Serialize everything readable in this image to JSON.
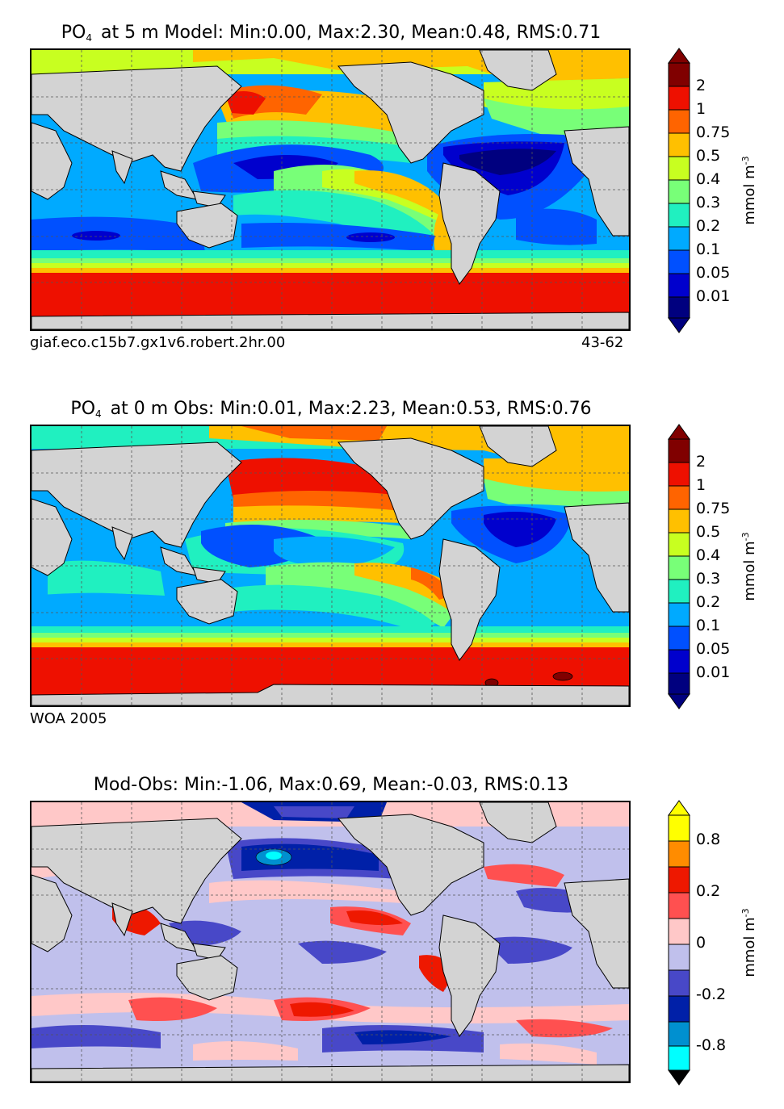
{
  "panels": [
    {
      "title_prefix": "PO",
      "title_sub": "4",
      "title_rest": "at 5 m Model: Min:0.00, Max:2.30, Mean:0.48, RMS:0.71",
      "caption_left": "giaf.eco.c15b7.gx1v6.robert.2hr.00",
      "caption_right": "43-62",
      "colorbar": {
        "ticks": [
          "2",
          "1",
          "0.75",
          "0.5",
          "0.4",
          "0.3",
          "0.2",
          "0.1",
          "0.05",
          "0.01"
        ],
        "colors": [
          "#00007f",
          "#0000cd",
          "#0050ff",
          "#00aaff",
          "#20f0c0",
          "#78ff78",
          "#c8ff20",
          "#ffc000",
          "#ff6400",
          "#ee1000",
          "#800000"
        ],
        "unit": "mmol m",
        "unit_exp": "-3"
      }
    },
    {
      "title_prefix": "PO",
      "title_sub": "4",
      "title_rest": "at 0 m Obs: Min:0.01, Max:2.23, Mean:0.53, RMS:0.76",
      "caption_left": "WOA 2005",
      "caption_right": "",
      "colorbar": {
        "ticks": [
          "2",
          "1",
          "0.75",
          "0.5",
          "0.4",
          "0.3",
          "0.2",
          "0.1",
          "0.05",
          "0.01"
        ],
        "colors": [
          "#00007f",
          "#0000cd",
          "#0050ff",
          "#00aaff",
          "#20f0c0",
          "#78ff78",
          "#c8ff20",
          "#ffc000",
          "#ff6400",
          "#ee1000",
          "#800000"
        ],
        "unit": "mmol m",
        "unit_exp": "-3"
      }
    },
    {
      "title_prefix": "",
      "title_sub": "",
      "title_rest": "Mod-Obs: Min:-1.06, Max:0.69, Mean:-0.03, RMS:0.13",
      "caption_left": "",
      "caption_right": "",
      "colorbar": {
        "ticks": [
          "0.8",
          "0.2",
          "0",
          "-0.2",
          "-0.8"
        ],
        "colors": [
          "#00ffff",
          "#0090d0",
          "#0020a8",
          "#4848c8",
          "#c0c0ec",
          "#ffc8c8",
          "#ff5050",
          "#ee1800",
          "#ff8c00",
          "#ffff00"
        ],
        "unit": "mmol m",
        "unit_exp": "-3"
      }
    }
  ]
}
